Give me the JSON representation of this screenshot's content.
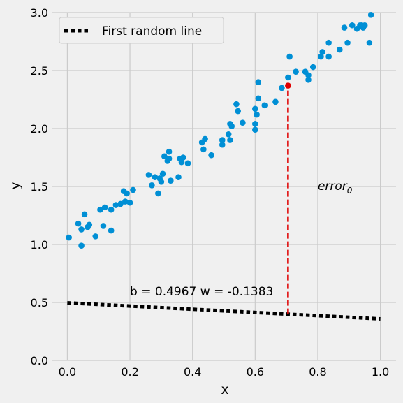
{
  "chart_data": {
    "type": "scatter",
    "title": "",
    "xlabel": "x",
    "ylabel": "y",
    "xlim": [
      -0.05,
      1.05
    ],
    "ylim": [
      0.0,
      3.0
    ],
    "xticks": [
      0.0,
      0.2,
      0.4,
      0.6,
      0.8,
      1.0
    ],
    "xtick_labels": [
      "0.0",
      "0.2",
      "0.4",
      "0.6",
      "0.8",
      "1.0"
    ],
    "yticks": [
      0.0,
      0.5,
      1.0,
      1.5,
      2.0,
      2.5,
      3.0
    ],
    "ytick_labels": [
      "0.0",
      "0.5",
      "1.0",
      "1.5",
      "2.0",
      "2.5",
      "3.0"
    ],
    "grid": true,
    "legend": {
      "placement": "upper-left",
      "entries": [
        "First random line"
      ]
    },
    "colors": {
      "points": "#008fd5",
      "highlight": "#e00000",
      "line": "#000000",
      "background": "#f0f0f0"
    },
    "points": {
      "x": [
        0.005,
        0.035,
        0.045,
        0.045,
        0.055,
        0.065,
        0.07,
        0.09,
        0.105,
        0.115,
        0.12,
        0.14,
        0.14,
        0.155,
        0.17,
        0.18,
        0.185,
        0.19,
        0.2,
        0.21,
        0.26,
        0.27,
        0.28,
        0.29,
        0.295,
        0.3,
        0.305,
        0.31,
        0.32,
        0.325,
        0.325,
        0.33,
        0.355,
        0.36,
        0.365,
        0.37,
        0.385,
        0.43,
        0.435,
        0.44,
        0.46,
        0.495,
        0.495,
        0.515,
        0.52,
        0.52,
        0.525,
        0.54,
        0.545,
        0.56,
        0.6,
        0.6,
        0.6,
        0.605,
        0.61,
        0.61,
        0.63,
        0.665,
        0.685,
        0.705,
        0.71,
        0.73,
        0.76,
        0.77,
        0.77,
        0.785,
        0.81,
        0.815,
        0.835,
        0.835,
        0.87,
        0.885,
        0.895,
        0.91,
        0.925,
        0.935,
        0.94,
        0.945,
        0.95,
        0.965,
        0.97
      ],
      "y": [
        1.06,
        1.18,
        0.99,
        1.13,
        1.26,
        1.15,
        1.17,
        1.07,
        1.3,
        1.16,
        1.32,
        1.12,
        1.3,
        1.34,
        1.35,
        1.46,
        1.37,
        1.44,
        1.36,
        1.47,
        1.6,
        1.51,
        1.58,
        1.44,
        1.57,
        1.54,
        1.61,
        1.76,
        1.72,
        1.8,
        1.74,
        1.55,
        1.58,
        1.74,
        1.71,
        1.75,
        1.7,
        1.88,
        1.82,
        1.91,
        1.77,
        1.9,
        1.86,
        1.95,
        2.04,
        1.9,
        2.02,
        2.21,
        2.15,
        2.05,
        2.17,
        2.04,
        1.99,
        2.12,
        2.4,
        2.26,
        2.2,
        2.23,
        2.35,
        2.44,
        2.62,
        2.49,
        2.49,
        2.46,
        2.42,
        2.53,
        2.62,
        2.66,
        2.74,
        2.62,
        2.68,
        2.87,
        2.74,
        2.89,
        2.86,
        2.89,
        2.89,
        2.87,
        2.89,
        2.74,
        2.98
      ]
    },
    "highlight_point": {
      "x": 0.705,
      "y": 2.37
    },
    "line": {
      "name": "First random line",
      "b": 0.4967,
      "w": -0.1383,
      "x": [
        0.0,
        1.0
      ],
      "y": [
        0.4967,
        0.3584
      ]
    },
    "error_segment": {
      "x": 0.705,
      "y_from": 0.4,
      "y_to": 2.37
    },
    "annotations": {
      "params": "b = 0.4967 w = -0.1383",
      "params_at": {
        "x": 0.2,
        "y": 0.56
      },
      "error_base": "error",
      "error_sub": "0",
      "error_at": {
        "x": 0.8,
        "y": 1.47
      }
    }
  }
}
